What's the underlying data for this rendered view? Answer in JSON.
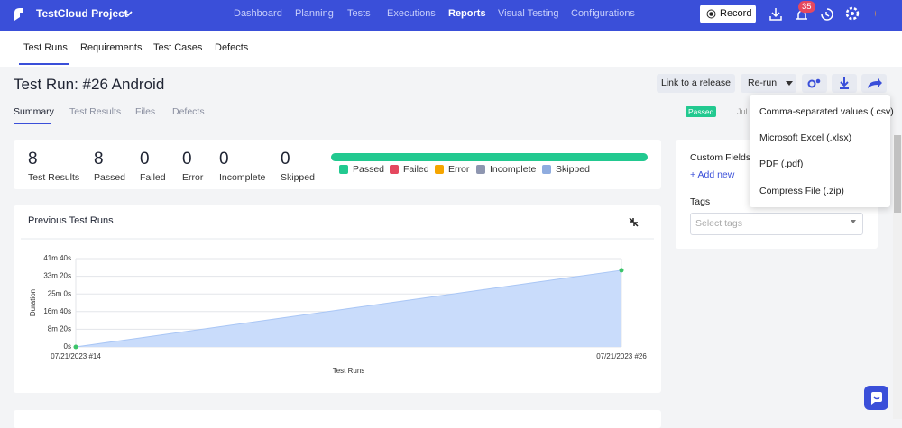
{
  "nav": {
    "brand": "TestCloud Project",
    "links": [
      "Dashboard",
      "Planning",
      "Tests",
      "Executions",
      "Reports",
      "Visual Testing",
      "Configurations"
    ],
    "active_link": 4,
    "record": "Record",
    "badge": "35"
  },
  "tabs": {
    "items": [
      "Test Runs",
      "Requirements",
      "Test Cases",
      "Defects"
    ],
    "active": 0
  },
  "header": {
    "title": "Test Run: #26 Android",
    "subtabs": [
      "Summary",
      "Test Results",
      "Files",
      "Defects"
    ],
    "active_subtab": 0,
    "link_button": "Link to a release",
    "rerun_button": "Re-run",
    "status": "Passed",
    "date": "Jul"
  },
  "export_menu": [
    "Comma-separated values (.csv)",
    "Microsoft Excel (.xlsx)",
    "PDF (.pdf)",
    "Compress File (.zip)"
  ],
  "stats": [
    {
      "value": 8,
      "label": "Test Results"
    },
    {
      "value": 8,
      "label": "Passed",
      "color": "#22c990"
    },
    {
      "value": 0,
      "label": "Failed",
      "color": "#e5485f"
    },
    {
      "value": 0,
      "label": "Error",
      "color": "#f5a500"
    },
    {
      "value": 0,
      "label": "Incomplete",
      "color": "#8e96b0"
    },
    {
      "value": 0,
      "label": "Skipped",
      "color": "#8facdf"
    }
  ],
  "legend": [
    "Passed",
    "Failed",
    "Error",
    "Incomplete",
    "Skipped"
  ],
  "side_panel": {
    "custom_fields": "Custom Fields",
    "add_new": "+ Add new",
    "tags": "Tags",
    "tags_placeholder": "Select tags"
  },
  "chart_data": {
    "type": "area",
    "title": "Previous Test Runs",
    "x_label": "Test Runs",
    "y_label": "Duration",
    "categories": [
      "07/21/2023 #14",
      "07/21/2023 #26"
    ],
    "values": [
      0,
      2170
    ],
    "color": "#c9dcfb",
    "line_color": "#a9c6f5",
    "point_color": "#3cc46a",
    "ylim": [
      0,
      2500
    ],
    "yticks": [
      {
        "value": 0,
        "label": "0s"
      },
      {
        "value": 500,
        "label": "8m 20s"
      },
      {
        "value": 1000,
        "label": "16m 40s"
      },
      {
        "value": 1500,
        "label": "25m 0s"
      },
      {
        "value": 2000,
        "label": "33m 20s"
      },
      {
        "value": 2500,
        "label": "41m 40s"
      }
    ],
    "grid": true
  }
}
